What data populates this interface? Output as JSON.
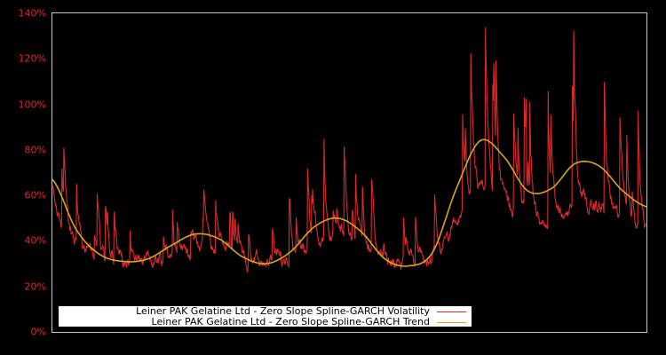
{
  "chart_data": {
    "type": "line",
    "title": "",
    "xlabel": "",
    "ylabel": "",
    "ylim": [
      0,
      140
    ],
    "y_ticks": [
      "0%",
      "20%",
      "40%",
      "60%",
      "80%",
      "100%",
      "120%",
      "140%"
    ],
    "y_tick_values": [
      0,
      20,
      40,
      60,
      80,
      100,
      120,
      140
    ],
    "grid": false,
    "legend_position": "lower-left",
    "colors": {
      "background": "#000000",
      "frame": "#c8c8c8",
      "tick_text": "#dc2a2a",
      "volatility": "#dc2a2a",
      "trend": "#d4a62a"
    },
    "series": [
      {
        "name": "Leiner PAK Gelatine Ltd - Zero Slope Spline-GARCH Volatility",
        "color": "#dc2a2a",
        "type": "volatility",
        "approx_range": [
          17,
          137
        ],
        "description": "High-frequency noisy series oscillating above the trend; floor ~17-20% in early/middle periods, spikes to ~108% around the second peak and ~137% near the end."
      },
      {
        "name": "Leiner PAK Gelatine Ltd - Zero Slope Spline-GARCH Trend",
        "color": "#d4a62a",
        "type": "trend",
        "x": [
          0,
          0.04,
          0.08,
          0.12,
          0.16,
          0.2,
          0.24,
          0.28,
          0.32,
          0.36,
          0.4,
          0.44,
          0.48,
          0.52,
          0.56,
          0.6,
          0.64,
          0.68,
          0.72,
          0.76,
          0.8,
          0.84,
          0.88,
          0.92,
          0.96,
          1.0
        ],
        "values": [
          67,
          45,
          34,
          31,
          32,
          38,
          43,
          41,
          33,
          30,
          35,
          46,
          50,
          44,
          32,
          29,
          35,
          63,
          84,
          77,
          62,
          63,
          74,
          73,
          62,
          55
        ]
      }
    ]
  },
  "legend": {
    "items": [
      {
        "label": "Leiner PAK Gelatine Ltd - Zero Slope Spline-GARCH Volatility",
        "color": "#dc2a2a"
      },
      {
        "label": "Leiner PAK Gelatine Ltd - Zero Slope Spline-GARCH Trend",
        "color": "#d4a62a"
      }
    ]
  }
}
